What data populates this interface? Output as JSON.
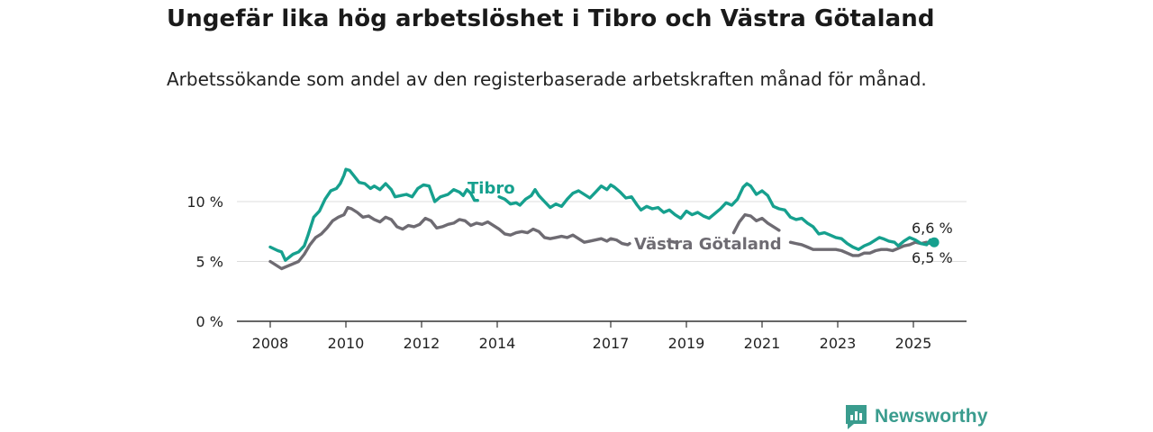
{
  "title": "Ungefär lika hög arbetslöshet i Tibro och Västra Götaland",
  "subtitle": "Arbetssökande som andel av den registerbaserade arbetskraften månad för månad.",
  "logo_text": "Newsworthy",
  "colors": {
    "tibro": "#16a08e",
    "vg": "#6e6b72",
    "axis": "#333333",
    "grid": "#dddddd",
    "label": "#222222"
  },
  "chart_data": {
    "type": "line",
    "title": "Ungefär lika hög arbetslöshet i Tibro och Västra Götaland",
    "subtitle": "Arbetssökande som andel av den registerbaserade arbetskraften månad för månad.",
    "xlabel": "",
    "ylabel": "",
    "ylim": [
      0,
      15
    ],
    "xlim": [
      2007.6,
      2026.5
    ],
    "yticks": [
      0,
      5,
      10
    ],
    "ytick_labels": [
      "0 %",
      "5 %",
      "10 %"
    ],
    "xticks": [
      2008,
      2010,
      2012,
      2014,
      2017,
      2019,
      2021,
      2023,
      2025
    ],
    "xtick_labels": [
      "2008",
      "2010",
      "2012",
      "2014",
      "2017",
      "2019",
      "2021",
      "2023",
      "2025"
    ],
    "grid": "horizontal",
    "legend": "inline labels on lines",
    "series": [
      {
        "name": "Tibro",
        "end_label": "6,6 %",
        "points": [
          [
            2008.0,
            6.2
          ],
          [
            2008.2,
            5.9
          ],
          [
            2008.3,
            5.8
          ],
          [
            2008.4,
            5.1
          ],
          [
            2008.6,
            5.6
          ],
          [
            2008.75,
            5.8
          ],
          [
            2008.9,
            6.3
          ],
          [
            2009.0,
            7.2
          ],
          [
            2009.15,
            8.7
          ],
          [
            2009.3,
            9.2
          ],
          [
            2009.45,
            10.2
          ],
          [
            2009.6,
            10.9
          ],
          [
            2009.75,
            11.1
          ],
          [
            2009.85,
            11.5
          ],
          [
            2009.95,
            12.2
          ],
          [
            2010.0,
            12.7
          ],
          [
            2010.1,
            12.6
          ],
          [
            2010.2,
            12.2
          ],
          [
            2010.35,
            11.6
          ],
          [
            2010.5,
            11.5
          ],
          [
            2010.65,
            11.1
          ],
          [
            2010.75,
            11.3
          ],
          [
            2010.9,
            11.0
          ],
          [
            2011.05,
            11.5
          ],
          [
            2011.2,
            11.0
          ],
          [
            2011.3,
            10.4
          ],
          [
            2011.45,
            10.5
          ],
          [
            2011.6,
            10.6
          ],
          [
            2011.75,
            10.4
          ],
          [
            2011.9,
            11.1
          ],
          [
            2012.05,
            11.4
          ],
          [
            2012.2,
            11.3
          ],
          [
            2012.35,
            10.0
          ],
          [
            2012.5,
            10.4
          ],
          [
            2012.7,
            10.6
          ],
          [
            2012.85,
            11.0
          ],
          [
            2013.0,
            10.8
          ],
          [
            2013.1,
            10.5
          ],
          [
            2013.2,
            11.0
          ],
          [
            2013.3,
            10.7
          ],
          [
            2013.4,
            10.1
          ],
          [
            2013.48,
            10.1
          ],
          null,
          [
            2014.05,
            10.4
          ],
          [
            2014.2,
            10.2
          ],
          [
            2014.35,
            9.8
          ],
          [
            2014.5,
            9.9
          ],
          [
            2014.6,
            9.7
          ],
          [
            2014.75,
            10.2
          ],
          [
            2014.9,
            10.5
          ],
          [
            2015.0,
            11.0
          ],
          [
            2015.1,
            10.5
          ],
          [
            2015.25,
            10.0
          ],
          [
            2015.4,
            9.5
          ],
          [
            2015.55,
            9.8
          ],
          [
            2015.7,
            9.6
          ],
          [
            2015.85,
            10.2
          ],
          [
            2016.0,
            10.7
          ],
          [
            2016.15,
            10.9
          ],
          [
            2016.3,
            10.6
          ],
          [
            2016.45,
            10.3
          ],
          [
            2016.6,
            10.8
          ],
          [
            2016.75,
            11.3
          ],
          [
            2016.9,
            11.0
          ],
          [
            2017.0,
            11.4
          ],
          [
            2017.1,
            11.2
          ],
          [
            2017.25,
            10.8
          ],
          [
            2017.4,
            10.3
          ],
          [
            2017.55,
            10.4
          ],
          [
            2017.7,
            9.7
          ],
          [
            2017.8,
            9.3
          ],
          [
            2017.95,
            9.6
          ],
          [
            2018.1,
            9.4
          ],
          [
            2018.25,
            9.5
          ],
          [
            2018.4,
            9.1
          ],
          [
            2018.55,
            9.3
          ],
          [
            2018.7,
            8.9
          ],
          [
            2018.85,
            8.6
          ],
          [
            2019.0,
            9.2
          ],
          [
            2019.15,
            8.9
          ],
          [
            2019.3,
            9.1
          ],
          [
            2019.45,
            8.8
          ],
          [
            2019.6,
            8.6
          ],
          [
            2019.75,
            9.0
          ],
          [
            2019.9,
            9.4
          ],
          [
            2020.05,
            9.9
          ],
          [
            2020.2,
            9.7
          ],
          [
            2020.35,
            10.2
          ],
          [
            2020.5,
            11.2
          ],
          [
            2020.6,
            11.5
          ],
          [
            2020.7,
            11.3
          ],
          [
            2020.85,
            10.6
          ],
          [
            2021.0,
            10.9
          ],
          [
            2021.15,
            10.5
          ],
          [
            2021.3,
            9.6
          ],
          [
            2021.45,
            9.4
          ],
          [
            2021.6,
            9.3
          ],
          [
            2021.75,
            8.7
          ],
          [
            2021.9,
            8.5
          ],
          [
            2022.05,
            8.6
          ],
          [
            2022.2,
            8.2
          ],
          [
            2022.35,
            7.9
          ],
          [
            2022.5,
            7.3
          ],
          [
            2022.65,
            7.4
          ],
          [
            2022.8,
            7.2
          ],
          [
            2022.95,
            7.0
          ],
          [
            2023.1,
            6.9
          ],
          [
            2023.25,
            6.5
          ],
          [
            2023.4,
            6.2
          ],
          [
            2023.55,
            6.0
          ],
          [
            2023.7,
            6.3
          ],
          [
            2023.85,
            6.5
          ],
          [
            2024.0,
            6.8
          ],
          [
            2024.1,
            7.0
          ],
          [
            2024.2,
            6.9
          ],
          [
            2024.35,
            6.7
          ],
          [
            2024.5,
            6.6
          ],
          [
            2024.6,
            6.3
          ],
          [
            2024.75,
            6.7
          ],
          [
            2024.9,
            7.0
          ],
          [
            2025.05,
            6.8
          ],
          [
            2025.2,
            6.5
          ],
          [
            2025.35,
            6.4
          ],
          [
            2025.45,
            6.8
          ],
          [
            2025.55,
            6.6
          ]
        ]
      },
      {
        "name": "Västra Götaland",
        "end_label": "6,5 %",
        "points": [
          [
            2008.0,
            5.0
          ],
          [
            2008.15,
            4.7
          ],
          [
            2008.3,
            4.4
          ],
          [
            2008.45,
            4.6
          ],
          [
            2008.6,
            4.8
          ],
          [
            2008.75,
            5.0
          ],
          [
            2008.9,
            5.6
          ],
          [
            2009.05,
            6.4
          ],
          [
            2009.2,
            7.0
          ],
          [
            2009.35,
            7.3
          ],
          [
            2009.5,
            7.8
          ],
          [
            2009.65,
            8.4
          ],
          [
            2009.8,
            8.7
          ],
          [
            2009.95,
            8.9
          ],
          [
            2010.05,
            9.5
          ],
          [
            2010.15,
            9.4
          ],
          [
            2010.3,
            9.1
          ],
          [
            2010.45,
            8.7
          ],
          [
            2010.6,
            8.8
          ],
          [
            2010.75,
            8.5
          ],
          [
            2010.9,
            8.3
          ],
          [
            2011.05,
            8.7
          ],
          [
            2011.2,
            8.5
          ],
          [
            2011.35,
            7.9
          ],
          [
            2011.5,
            7.7
          ],
          [
            2011.65,
            8.0
          ],
          [
            2011.8,
            7.9
          ],
          [
            2011.95,
            8.1
          ],
          [
            2012.1,
            8.6
          ],
          [
            2012.25,
            8.4
          ],
          [
            2012.4,
            7.8
          ],
          [
            2012.55,
            7.9
          ],
          [
            2012.7,
            8.1
          ],
          [
            2012.85,
            8.2
          ],
          [
            2013.0,
            8.5
          ],
          [
            2013.15,
            8.4
          ],
          [
            2013.3,
            8.0
          ],
          [
            2013.45,
            8.2
          ],
          [
            2013.6,
            8.1
          ],
          [
            2013.75,
            8.3
          ],
          [
            2013.9,
            8.0
          ],
          [
            2014.05,
            7.7
          ],
          [
            2014.2,
            7.3
          ],
          [
            2014.35,
            7.2
          ],
          [
            2014.5,
            7.4
          ],
          [
            2014.65,
            7.5
          ],
          [
            2014.8,
            7.4
          ],
          [
            2014.95,
            7.7
          ],
          [
            2015.1,
            7.5
          ],
          [
            2015.25,
            7.0
          ],
          [
            2015.4,
            6.9
          ],
          [
            2015.55,
            7.0
          ],
          [
            2015.7,
            7.1
          ],
          [
            2015.85,
            7.0
          ],
          [
            2016.0,
            7.2
          ],
          [
            2016.15,
            6.9
          ],
          [
            2016.3,
            6.6
          ],
          [
            2016.45,
            6.7
          ],
          [
            2016.6,
            6.8
          ],
          [
            2016.75,
            6.9
          ],
          [
            2016.9,
            6.7
          ],
          [
            2017.0,
            6.9
          ],
          [
            2017.15,
            6.8
          ],
          [
            2017.3,
            6.5
          ],
          [
            2017.45,
            6.4
          ],
          [
            2017.5,
            6.5
          ],
          null,
          [
            2018.55,
            6.7
          ],
          [
            2018.7,
            6.6
          ],
          null,
          [
            2020.25,
            7.4
          ],
          [
            2020.4,
            8.3
          ],
          [
            2020.55,
            8.9
          ],
          [
            2020.7,
            8.8
          ],
          [
            2020.85,
            8.4
          ],
          [
            2021.0,
            8.6
          ],
          [
            2021.15,
            8.2
          ],
          [
            2021.3,
            7.9
          ],
          [
            2021.45,
            7.6
          ],
          null,
          [
            2021.75,
            6.6
          ],
          [
            2021.9,
            6.5
          ],
          [
            2022.05,
            6.4
          ],
          [
            2022.2,
            6.2
          ],
          [
            2022.35,
            6.0
          ],
          [
            2022.5,
            6.0
          ],
          [
            2022.65,
            6.0
          ],
          [
            2022.8,
            6.0
          ],
          [
            2022.95,
            6.0
          ],
          [
            2023.1,
            5.9
          ],
          [
            2023.25,
            5.7
          ],
          [
            2023.4,
            5.5
          ],
          [
            2023.55,
            5.5
          ],
          [
            2023.7,
            5.7
          ],
          [
            2023.85,
            5.7
          ],
          [
            2024.0,
            5.9
          ],
          [
            2024.15,
            6.0
          ],
          [
            2024.3,
            6.0
          ],
          [
            2024.45,
            5.9
          ],
          [
            2024.6,
            6.1
          ],
          [
            2024.75,
            6.3
          ],
          [
            2024.9,
            6.4
          ],
          [
            2025.05,
            6.6
          ],
          [
            2025.2,
            6.5
          ],
          [
            2025.35,
            6.6
          ],
          [
            2025.45,
            6.5
          ],
          [
            2025.55,
            6.5
          ]
        ]
      }
    ],
    "annotations": [
      {
        "text": "Tibro",
        "series": "Tibro"
      },
      {
        "text": "Västra Götaland",
        "series": "Västra Götaland"
      },
      {
        "text": "6,6 %",
        "series": "Tibro"
      },
      {
        "text": "6,5 %",
        "series": "Västra Götaland"
      }
    ]
  }
}
